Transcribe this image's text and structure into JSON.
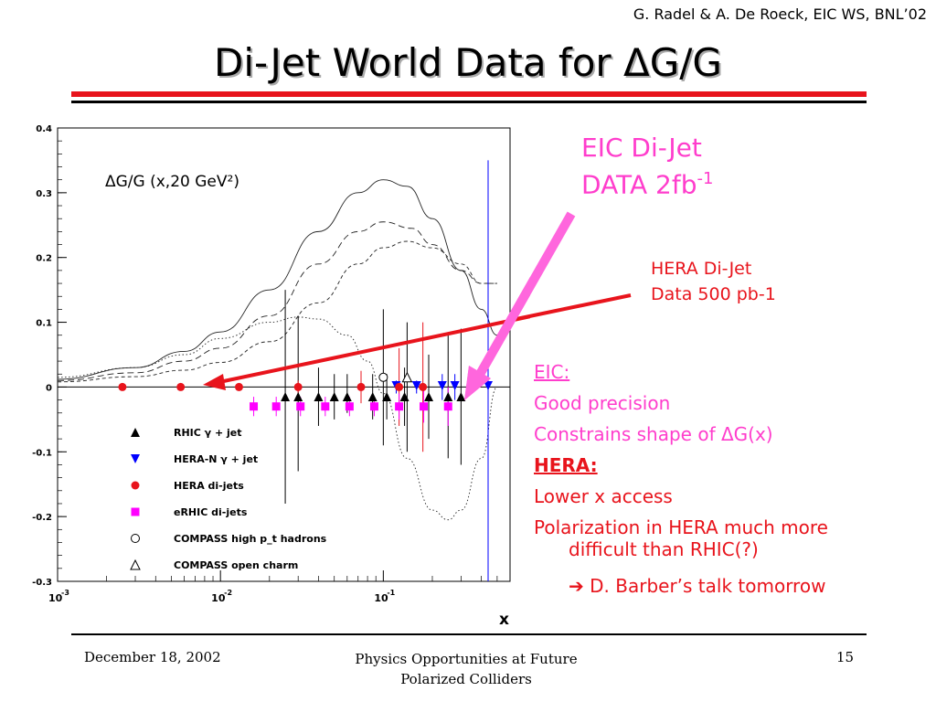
{
  "header": {
    "credit": "G. Radel & A. De Roeck, EIC WS, BNL’02",
    "title": "Di-Jet World Data for ΔG/G"
  },
  "annotations": {
    "eic_line1": "EIC Di-Jet",
    "eic_line2": "DATA 2fb",
    "eic_sup": "-1",
    "hera_line1": "HERA Di-Jet",
    "hera_line2": "Data 500 pb-1"
  },
  "bullets": {
    "eic_head": "EIC:",
    "eic_1": "Good precision",
    "eic_2": "Constrains shape of ΔG(x)",
    "hera_head": "HERA:",
    "hera_1": "Lower x access",
    "hera_2a": "Polarization in HERA much more",
    "hera_2b": "difficult than RHIC(?)",
    "arrow_glyph": "➔",
    "hera_3": "D. Barber’s talk tomorrow"
  },
  "footer": {
    "date": "December 18, 2002",
    "center_line1": "Physics Opportunities at Future",
    "center_line2": "Polarized Colliders",
    "page": "15"
  },
  "colors": {
    "accent_red": "#e8141c",
    "pink": "#ff3dcc",
    "blue": "#0000ff",
    "magenta": "#ff00ff"
  },
  "chart_data": {
    "type": "scatter",
    "title": "ΔG/G (x,20 GeV²)",
    "xlabel": "x",
    "ylabel": "",
    "xscale": "log",
    "xlim": [
      0.001,
      0.6
    ],
    "ylim": [
      -0.3,
      0.4
    ],
    "x_ticks": [
      {
        "value": 0.001,
        "base": "10",
        "exp": "-3"
      },
      {
        "value": 0.01,
        "base": "10",
        "exp": "-2"
      },
      {
        "value": 0.1,
        "base": "10",
        "exp": "-1"
      }
    ],
    "y_ticks": [
      {
        "value": 0.4,
        "label": "0.4"
      },
      {
        "value": 0.3,
        "label": "0.3"
      },
      {
        "value": 0.2,
        "label": "0.2"
      },
      {
        "value": 0.1,
        "label": "0.1"
      },
      {
        "value": 0,
        "label": "0"
      },
      {
        "value": -0.1,
        "label": "-0.1"
      },
      {
        "value": -0.2,
        "label": "-0.2"
      },
      {
        "value": -0.3,
        "label": "-0.3"
      }
    ],
    "legend_position": "bottom-left",
    "series": [
      {
        "name": "RHIC γ + jet",
        "marker": "triangle-up",
        "color": "#000000",
        "points": [
          {
            "x": 0.025,
            "y": -0.015,
            "lo": -0.18,
            "hi": 0.15
          },
          {
            "x": 0.03,
            "y": -0.015,
            "lo": -0.13,
            "hi": 0.11
          },
          {
            "x": 0.04,
            "y": -0.015,
            "lo": -0.06,
            "hi": 0.03
          },
          {
            "x": 0.05,
            "y": -0.015,
            "lo": -0.05,
            "hi": 0.02
          },
          {
            "x": 0.06,
            "y": -0.015,
            "lo": -0.04,
            "hi": 0.02
          },
          {
            "x": 0.086,
            "y": -0.015,
            "lo": -0.05,
            "hi": 0.02
          },
          {
            "x": 0.105,
            "y": -0.015,
            "lo": -0.05,
            "hi": 0.02
          },
          {
            "x": 0.135,
            "y": -0.015,
            "lo": -0.06,
            "hi": 0.03
          },
          {
            "x": 0.19,
            "y": -0.015,
            "lo": -0.08,
            "hi": 0.05
          },
          {
            "x": 0.25,
            "y": -0.015,
            "lo": -0.11,
            "hi": 0.08
          },
          {
            "x": 0.3,
            "y": -0.015,
            "lo": -0.12,
            "hi": 0.09
          }
        ]
      },
      {
        "name": "HERA-N γ + jet",
        "marker": "triangle-down",
        "color": "#0000ff",
        "points": [
          {
            "x": 0.12,
            "y": 0.002,
            "lo": -0.01,
            "hi": 0.01
          },
          {
            "x": 0.16,
            "y": 0.002,
            "lo": -0.01,
            "hi": 0.01
          },
          {
            "x": 0.23,
            "y": 0.002,
            "lo": -0.02,
            "hi": 0.02
          },
          {
            "x": 0.275,
            "y": 0.002,
            "lo": -0.02,
            "hi": 0.02
          },
          {
            "x": 0.44,
            "y": 0.002,
            "lo": -0.3,
            "hi": 0.35
          }
        ]
      },
      {
        "name": "HERA di-jets",
        "marker": "circle",
        "color": "#e8141c",
        "points": [
          {
            "x": 0.0025,
            "y": 0.0,
            "lo": -0.003,
            "hi": 0.003
          },
          {
            "x": 0.0057,
            "y": 0.0,
            "lo": -0.004,
            "hi": 0.004
          },
          {
            "x": 0.013,
            "y": 0.0,
            "lo": -0.006,
            "hi": 0.006
          },
          {
            "x": 0.03,
            "y": 0.0,
            "lo": -0.01,
            "hi": 0.01
          },
          {
            "x": 0.073,
            "y": 0.0,
            "lo": -0.025,
            "hi": 0.025
          },
          {
            "x": 0.125,
            "y": 0.0,
            "lo": -0.06,
            "hi": 0.06
          },
          {
            "x": 0.175,
            "y": 0.0,
            "lo": -0.1,
            "hi": 0.1
          }
        ]
      },
      {
        "name": "eRHIC di-jets",
        "marker": "square",
        "color": "#ff00ff",
        "points": [
          {
            "x": 0.016,
            "y": -0.03,
            "lo": -0.045,
            "hi": -0.015
          },
          {
            "x": 0.022,
            "y": -0.03,
            "lo": -0.045,
            "hi": -0.015
          },
          {
            "x": 0.031,
            "y": -0.03,
            "lo": -0.045,
            "hi": -0.015
          },
          {
            "x": 0.044,
            "y": -0.03,
            "lo": -0.045,
            "hi": -0.015
          },
          {
            "x": 0.062,
            "y": -0.03,
            "lo": -0.045,
            "hi": -0.015
          },
          {
            "x": 0.088,
            "y": -0.03,
            "lo": -0.045,
            "hi": -0.015
          },
          {
            "x": 0.125,
            "y": -0.03,
            "lo": -0.05,
            "hi": -0.01
          },
          {
            "x": 0.177,
            "y": -0.03,
            "lo": -0.055,
            "hi": -0.005
          },
          {
            "x": 0.25,
            "y": -0.03,
            "lo": -0.06,
            "hi": 0.0
          }
        ]
      },
      {
        "name": "COMPASS high p_t hadrons",
        "marker": "circle-open",
        "color": "#000000",
        "points": [
          {
            "x": 0.1,
            "y": 0.015,
            "lo": -0.09,
            "hi": 0.12
          }
        ]
      },
      {
        "name": "COMPASS open charm",
        "marker": "triangle-open",
        "color": "#000000",
        "points": [
          {
            "x": 0.14,
            "y": 0.015,
            "lo": -0.1,
            "hi": 0.1
          }
        ]
      }
    ],
    "curves": [
      {
        "style": "solid",
        "points": [
          [
            0.001,
            0.012
          ],
          [
            0.003,
            0.03
          ],
          [
            0.006,
            0.055
          ],
          [
            0.01,
            0.085
          ],
          [
            0.02,
            0.15
          ],
          [
            0.04,
            0.24
          ],
          [
            0.07,
            0.3
          ],
          [
            0.1,
            0.32
          ],
          [
            0.14,
            0.31
          ],
          [
            0.2,
            0.26
          ],
          [
            0.3,
            0.18
          ],
          [
            0.4,
            0.12
          ],
          [
            0.5,
            0.08
          ]
        ]
      },
      {
        "style": "long-dash",
        "points": [
          [
            0.001,
            0.01
          ],
          [
            0.003,
            0.022
          ],
          [
            0.006,
            0.04
          ],
          [
            0.01,
            0.06
          ],
          [
            0.02,
            0.11
          ],
          [
            0.04,
            0.19
          ],
          [
            0.07,
            0.24
          ],
          [
            0.1,
            0.255
          ],
          [
            0.15,
            0.245
          ],
          [
            0.2,
            0.22
          ],
          [
            0.3,
            0.18
          ],
          [
            0.4,
            0.16
          ],
          [
            0.5,
            0.16
          ]
        ]
      },
      {
        "style": "short-dash",
        "points": [
          [
            0.001,
            0.008
          ],
          [
            0.003,
            0.016
          ],
          [
            0.006,
            0.026
          ],
          [
            0.01,
            0.038
          ],
          [
            0.02,
            0.07
          ],
          [
            0.04,
            0.13
          ],
          [
            0.07,
            0.19
          ],
          [
            0.1,
            0.215
          ],
          [
            0.14,
            0.225
          ],
          [
            0.2,
            0.215
          ],
          [
            0.3,
            0.19
          ],
          [
            0.4,
            0.16
          ],
          [
            0.5,
            0.16
          ]
        ]
      },
      {
        "style": "dotted",
        "points": [
          [
            0.001,
            0.015
          ],
          [
            0.003,
            0.03
          ],
          [
            0.006,
            0.05
          ],
          [
            0.01,
            0.075
          ],
          [
            0.02,
            0.1
          ],
          [
            0.03,
            0.108
          ],
          [
            0.04,
            0.105
          ],
          [
            0.06,
            0.08
          ],
          [
            0.08,
            0.04
          ],
          [
            0.1,
            -0.01
          ],
          [
            0.14,
            -0.11
          ],
          [
            0.2,
            -0.19
          ],
          [
            0.25,
            -0.205
          ],
          [
            0.3,
            -0.19
          ],
          [
            0.4,
            -0.11
          ],
          [
            0.5,
            0.0
          ]
        ]
      }
    ]
  }
}
